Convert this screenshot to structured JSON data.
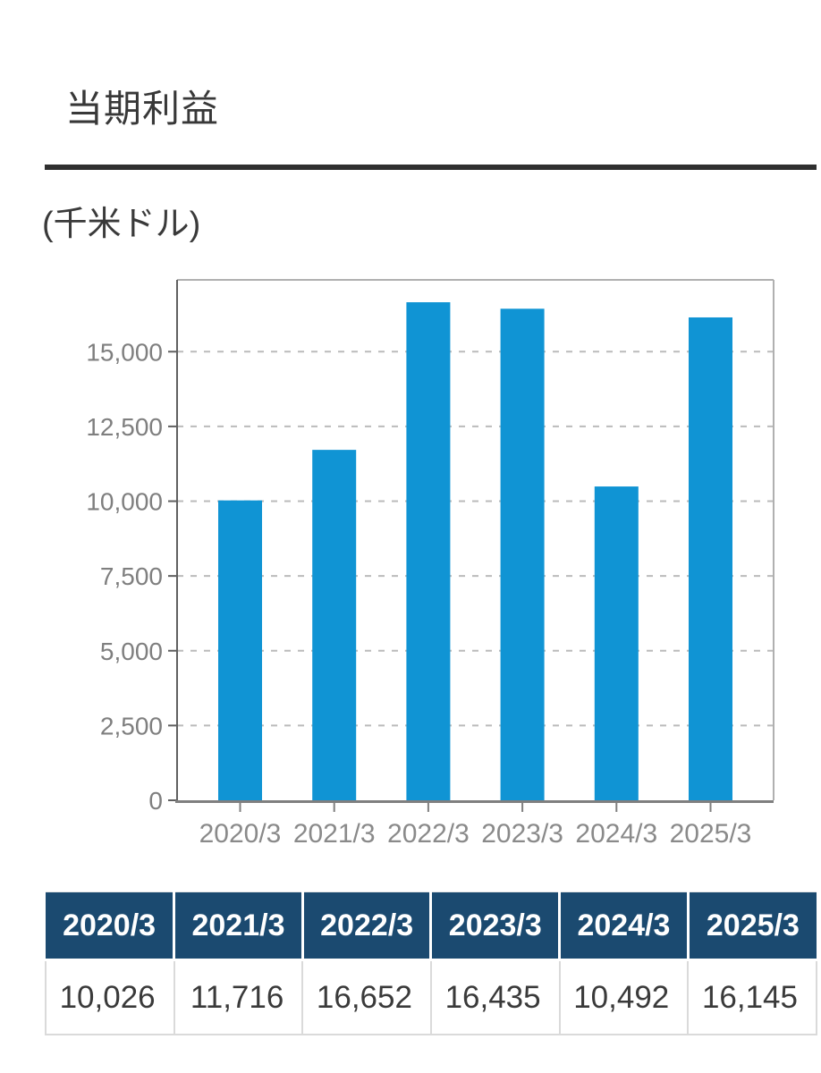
{
  "page": {
    "title": "当期利益",
    "unit_label": "(千米ドル)"
  },
  "chart_data": {
    "type": "bar",
    "title": "当期利益",
    "categories": [
      "2020/3",
      "2021/3",
      "2022/3",
      "2023/3",
      "2024/3",
      "2025/3"
    ],
    "values": [
      10026,
      11716,
      16652,
      16435,
      10492,
      16145
    ],
    "xlabel": "",
    "ylabel": "千米ドル",
    "ylim": [
      0,
      17400
    ],
    "yticks": [
      0,
      2500,
      5000,
      7500,
      10000,
      12500,
      15000
    ],
    "ytick_labels": [
      "0",
      "2,500",
      "5,000",
      "7,500",
      "10,000",
      "12,500",
      "15,000"
    ],
    "grid": "horizontal-dashed",
    "legend": "none",
    "bar_color": "#1094d4"
  },
  "table": {
    "headers": [
      "2020/3",
      "2021/3",
      "2022/3",
      "2023/3",
      "2024/3",
      "2025/3"
    ],
    "rows": [
      [
        "10,026",
        "11,716",
        "16,652",
        "16,435",
        "10,492",
        "16,145"
      ]
    ]
  },
  "colors": {
    "accent_bar_blue": "#1094d4",
    "table_header_navy": "#1b4a70",
    "divider_dark": "#2f2f2f",
    "axis_label_gray": "#8a8a8a",
    "gridline_gray": "#bbbbbb"
  }
}
